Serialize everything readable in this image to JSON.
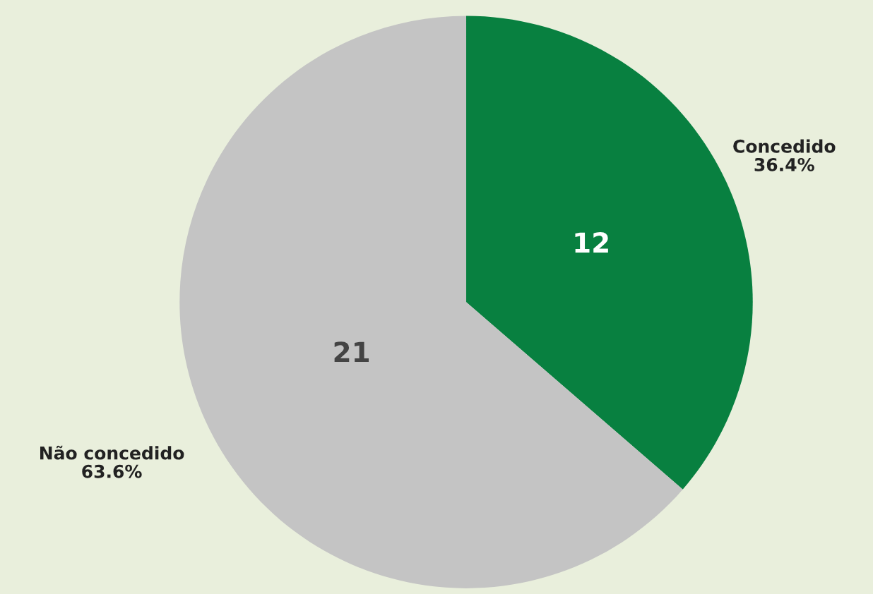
{
  "chart_data": {
    "type": "pie",
    "categories": [
      "Concedido",
      "Não concedido"
    ],
    "values": [
      12,
      21
    ],
    "colors": [
      "#088040",
      "#c4c4c4"
    ],
    "data_labels": true,
    "annotations": [
      "36.4%",
      "63.6%"
    ],
    "legend": false
  }
}
